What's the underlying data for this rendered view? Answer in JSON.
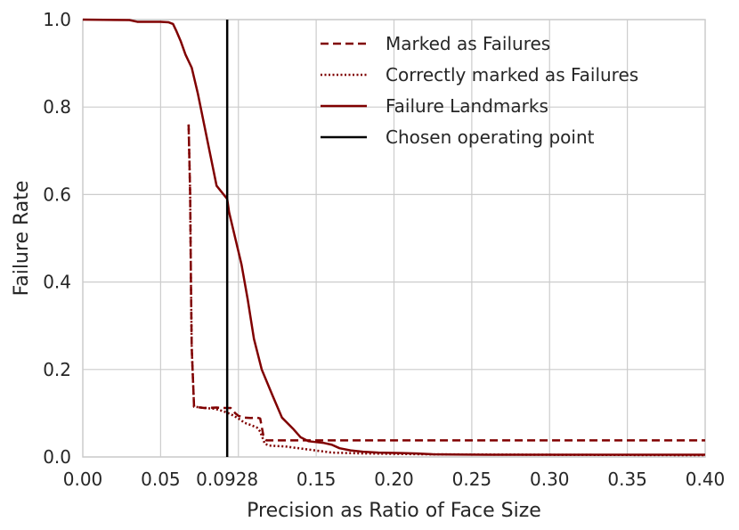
{
  "chart_data": {
    "type": "line",
    "title": "",
    "xlabel": "Precision as Ratio of Face Size",
    "ylabel": "Failure Rate",
    "xlim": [
      0.0,
      0.4
    ],
    "ylim": [
      0.0,
      1.0
    ],
    "grid": true,
    "legend_position": "top-right",
    "x_ticks": [
      {
        "value": 0.0,
        "label": "0.00"
      },
      {
        "value": 0.05,
        "label": "0.05"
      },
      {
        "value": 0.0928,
        "label": "0.0928"
      },
      {
        "value": 0.15,
        "label": "0.15"
      },
      {
        "value": 0.2,
        "label": "0.20"
      },
      {
        "value": 0.25,
        "label": "0.25"
      },
      {
        "value": 0.3,
        "label": "0.30"
      },
      {
        "value": 0.35,
        "label": "0.35"
      },
      {
        "value": 0.4,
        "label": "0.40"
      }
    ],
    "y_ticks": [
      {
        "value": 0.0,
        "label": "0.0"
      },
      {
        "value": 0.2,
        "label": "0.2"
      },
      {
        "value": 0.4,
        "label": "0.4"
      },
      {
        "value": 0.6,
        "label": "0.6"
      },
      {
        "value": 0.8,
        "label": "0.8"
      },
      {
        "value": 1.0,
        "label": "1.0"
      }
    ],
    "x_grid": [
      0.05,
      0.1,
      0.15,
      0.2,
      0.25,
      0.3,
      0.35
    ],
    "series": [
      {
        "name": "Marked as Failures",
        "style": "dashed",
        "color": "#800000",
        "points": [
          [
            0.068,
            0.76
          ],
          [
            0.069,
            0.6
          ],
          [
            0.0695,
            0.4
          ],
          [
            0.07,
            0.25
          ],
          [
            0.071,
            0.16
          ],
          [
            0.0715,
            0.115
          ],
          [
            0.078,
            0.112
          ],
          [
            0.086,
            0.113
          ],
          [
            0.09,
            0.112
          ],
          [
            0.095,
            0.112
          ],
          [
            0.098,
            0.1
          ],
          [
            0.1,
            0.094
          ],
          [
            0.104,
            0.09
          ],
          [
            0.108,
            0.089
          ],
          [
            0.112,
            0.09
          ],
          [
            0.114,
            0.088
          ],
          [
            0.116,
            0.05
          ],
          [
            0.118,
            0.038
          ],
          [
            0.125,
            0.038
          ],
          [
            0.14,
            0.038
          ],
          [
            0.2,
            0.038
          ],
          [
            0.3,
            0.038
          ],
          [
            0.4,
            0.038
          ]
        ]
      },
      {
        "name": "Correctly marked as Failures",
        "style": "dotted",
        "color": "#800000",
        "points": [
          [
            0.068,
            0.76
          ],
          [
            0.069,
            0.6
          ],
          [
            0.0695,
            0.4
          ],
          [
            0.07,
            0.25
          ],
          [
            0.071,
            0.16
          ],
          [
            0.0715,
            0.115
          ],
          [
            0.078,
            0.112
          ],
          [
            0.085,
            0.11
          ],
          [
            0.09,
            0.105
          ],
          [
            0.095,
            0.098
          ],
          [
            0.1,
            0.088
          ],
          [
            0.104,
            0.078
          ],
          [
            0.108,
            0.073
          ],
          [
            0.112,
            0.067
          ],
          [
            0.114,
            0.058
          ],
          [
            0.117,
            0.03
          ],
          [
            0.12,
            0.026
          ],
          [
            0.13,
            0.024
          ],
          [
            0.145,
            0.017
          ],
          [
            0.16,
            0.01
          ],
          [
            0.18,
            0.008
          ],
          [
            0.22,
            0.006
          ],
          [
            0.3,
            0.005
          ],
          [
            0.4,
            0.004
          ]
        ]
      },
      {
        "name": "Failure Landmarks",
        "style": "solid",
        "color": "#800000",
        "points": [
          [
            0.0,
            1.0
          ],
          [
            0.03,
            0.999
          ],
          [
            0.035,
            0.995
          ],
          [
            0.05,
            0.995
          ],
          [
            0.055,
            0.994
          ],
          [
            0.058,
            0.99
          ],
          [
            0.06,
            0.975
          ],
          [
            0.063,
            0.95
          ],
          [
            0.066,
            0.92
          ],
          [
            0.07,
            0.89
          ],
          [
            0.074,
            0.83
          ],
          [
            0.078,
            0.76
          ],
          [
            0.082,
            0.69
          ],
          [
            0.086,
            0.62
          ],
          [
            0.0928,
            0.59
          ],
          [
            0.094,
            0.56
          ],
          [
            0.098,
            0.5
          ],
          [
            0.102,
            0.44
          ],
          [
            0.106,
            0.36
          ],
          [
            0.11,
            0.27
          ],
          [
            0.115,
            0.2
          ],
          [
            0.122,
            0.14
          ],
          [
            0.128,
            0.09
          ],
          [
            0.135,
            0.065
          ],
          [
            0.14,
            0.045
          ],
          [
            0.145,
            0.036
          ],
          [
            0.15,
            0.034
          ],
          [
            0.155,
            0.032
          ],
          [
            0.16,
            0.028
          ],
          [
            0.165,
            0.02
          ],
          [
            0.172,
            0.015
          ],
          [
            0.18,
            0.012
          ],
          [
            0.19,
            0.01
          ],
          [
            0.205,
            0.009
          ],
          [
            0.215,
            0.008
          ],
          [
            0.225,
            0.006
          ],
          [
            0.26,
            0.005
          ],
          [
            0.35,
            0.005
          ],
          [
            0.4,
            0.005
          ]
        ]
      },
      {
        "name": "Chosen operating point",
        "style": "solid",
        "color": "#000000",
        "points": [
          [
            0.0928,
            0.0
          ],
          [
            0.0928,
            1.0
          ]
        ]
      }
    ]
  }
}
